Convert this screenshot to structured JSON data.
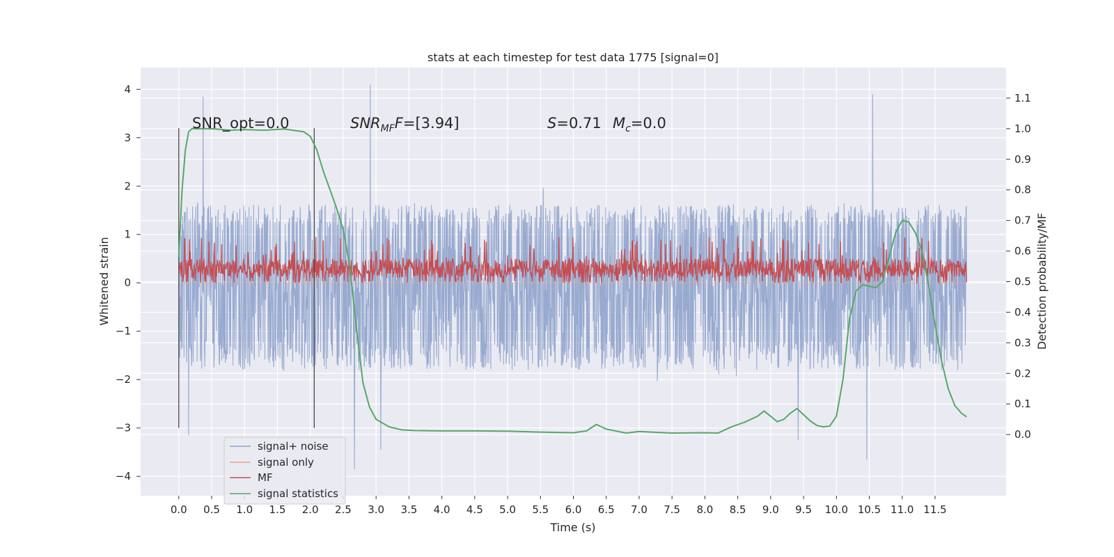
{
  "chart_data": {
    "type": "line",
    "title": "stats at each timestep for test data 1775 [signal=0]",
    "xlabel": "Time (s)",
    "ylabel_left": "Whitened strain",
    "ylabel_right": "Detection probability/MF",
    "xlim": [
      -0.58,
      12.58
    ],
    "ylim_left": [
      -4.4,
      4.45
    ],
    "ylim_right": [
      -0.2,
      1.2
    ],
    "x_ticks": [
      "0.0",
      "0.5",
      "1.0",
      "1.5",
      "2.0",
      "2.5",
      "3.0",
      "3.5",
      "4.0",
      "4.5",
      "5.0",
      "5.5",
      "6.0",
      "6.5",
      "7.0",
      "7.5",
      "8.0",
      "8.5",
      "9.0",
      "9.5",
      "10.0",
      "10.5",
      "11.0",
      "11.5"
    ],
    "y_ticks_left": [
      "4",
      "3",
      "2",
      "1",
      "0",
      "−1",
      "−2",
      "−3",
      "−4"
    ],
    "y_ticks_right": [
      "1.1",
      "1.0",
      "0.9",
      "0.8",
      "0.7",
      "0.6",
      "0.5",
      "0.4",
      "0.3",
      "0.2",
      "0.1",
      "0.0"
    ],
    "grid": true,
    "legend_position": "lower-left",
    "annotations": {
      "snr_opt": "SNR_opt=0.0",
      "snr_mf_sym": "SNR",
      "snr_mf_sub": "MF",
      "snr_mf_val": "=[3.94]",
      "s_sym": "S",
      "s_val": "=0.71",
      "mc_sym": "M",
      "mc_sub": "c",
      "mc_val": "=0.0"
    },
    "vertical_markers_x": [
      0.0,
      2.06
    ],
    "vertical_markers_y": [
      -3.0,
      3.2
    ],
    "series": [
      {
        "name": "signal+ noise",
        "color": "#8fa3cc",
        "axis": "left",
        "x_range": [
          0.0,
          11.98
        ],
        "band_core": [
          -1.5,
          1.35
        ],
        "envelope": [
          -3.3,
          3.3
        ],
        "notable_spikes": [
          {
            "x": 0.37,
            "y": 3.85
          },
          {
            "x": 2.91,
            "y": 4.1
          },
          {
            "x": 10.55,
            "y": 3.9
          },
          {
            "x": 2.67,
            "y": -3.85
          },
          {
            "x": 10.46,
            "y": -3.65
          },
          {
            "x": 0.15,
            "y": -3.15
          },
          {
            "x": 3.07,
            "y": -3.45
          },
          {
            "x": 9.42,
            "y": -3.25
          }
        ]
      },
      {
        "name": "signal only",
        "color": "#e8a58a",
        "axis": "left",
        "x": [
          0.0,
          11.98
        ],
        "y": [
          0.0,
          0.0
        ]
      },
      {
        "name": "MF",
        "color": "#c44e52",
        "axis": "left",
        "x_range": [
          0.0,
          11.98
        ],
        "baseline": 0.0,
        "typical": [
          0.1,
          0.5
        ],
        "max": 0.95
      },
      {
        "name": "signal statistics",
        "color": "#55a868",
        "axis": "right",
        "x": [
          0.0,
          0.05,
          0.1,
          0.15,
          0.2,
          0.3,
          0.5,
          0.8,
          1.0,
          1.3,
          1.6,
          1.9,
          2.0,
          2.1,
          2.2,
          2.3,
          2.4,
          2.5,
          2.6,
          2.7,
          2.8,
          2.9,
          3.0,
          3.2,
          3.4,
          3.6,
          4.0,
          4.5,
          5.0,
          5.5,
          6.0,
          6.2,
          6.35,
          6.5,
          6.8,
          7.0,
          7.5,
          8.0,
          8.2,
          8.4,
          8.6,
          8.8,
          8.9,
          9.0,
          9.1,
          9.2,
          9.3,
          9.4,
          9.5,
          9.6,
          9.7,
          9.8,
          9.9,
          10.0,
          10.1,
          10.2,
          10.3,
          10.4,
          10.5,
          10.6,
          10.7,
          10.8,
          10.9,
          11.0,
          11.1,
          11.2,
          11.3,
          11.4,
          11.5,
          11.6,
          11.7,
          11.8,
          11.9,
          11.98
        ],
        "y": [
          0.58,
          0.8,
          0.93,
          0.99,
          1.0,
          1.0,
          1.0,
          0.995,
          0.997,
          0.995,
          0.999,
          0.99,
          0.975,
          0.93,
          0.86,
          0.8,
          0.74,
          0.67,
          0.55,
          0.35,
          0.17,
          0.09,
          0.05,
          0.025,
          0.015,
          0.013,
          0.012,
          0.012,
          0.011,
          0.008,
          0.006,
          0.012,
          0.033,
          0.018,
          0.005,
          0.01,
          0.005,
          0.006,
          0.005,
          0.025,
          0.04,
          0.06,
          0.077,
          0.06,
          0.042,
          0.05,
          0.07,
          0.085,
          0.065,
          0.045,
          0.03,
          0.025,
          0.028,
          0.06,
          0.18,
          0.38,
          0.47,
          0.49,
          0.485,
          0.48,
          0.5,
          0.58,
          0.66,
          0.7,
          0.695,
          0.66,
          0.6,
          0.49,
          0.36,
          0.24,
          0.15,
          0.095,
          0.07,
          0.058
        ]
      }
    ]
  }
}
